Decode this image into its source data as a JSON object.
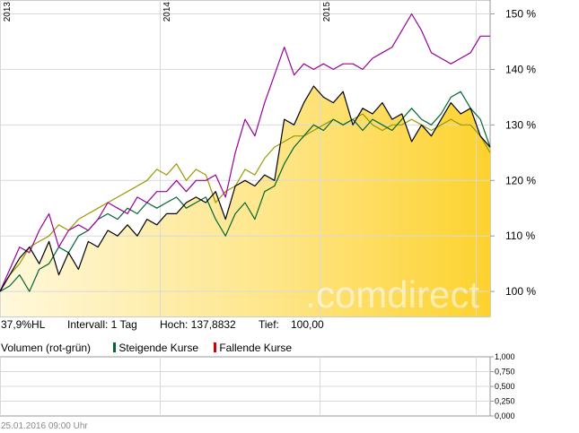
{
  "chart_data": {
    "type": "line",
    "x_labels": [
      "2013",
      "2014",
      "2015"
    ],
    "y_ticks": [
      "150 %",
      "140 %",
      "130 %",
      "120 %",
      "110 %",
      "100 %"
    ],
    "ylim": [
      95.5,
      152.5
    ],
    "grid": true,
    "watermark": ".comdirect",
    "colors": {
      "fill_top": "#fdd22e",
      "fill_light": "#fff8dc",
      "main": "#000000",
      "purple": "#990099",
      "olive": "#999900",
      "green": "#006633"
    },
    "series": [
      {
        "color": "black",
        "x": [
          0,
          0.02,
          0.04,
          0.06,
          0.08,
          0.1,
          0.12,
          0.14,
          0.16,
          0.18,
          0.2,
          0.22,
          0.24,
          0.26,
          0.28,
          0.3,
          0.32,
          0.34,
          0.36,
          0.38,
          0.4,
          0.42,
          0.44,
          0.46,
          0.48,
          0.5,
          0.52,
          0.54,
          0.56,
          0.58,
          0.6,
          0.62,
          0.64,
          0.66,
          0.68,
          0.7,
          0.72,
          0.74,
          0.76,
          0.78,
          0.8,
          0.82,
          0.84,
          0.86,
          0.88,
          0.9,
          0.92,
          0.94,
          0.96,
          0.98,
          1
        ],
        "y": [
          100,
          103,
          106,
          108,
          105,
          109,
          103,
          107,
          104,
          109,
          108,
          111,
          110,
          112,
          110,
          113,
          112,
          114,
          114,
          116,
          117,
          116,
          118,
          113,
          119,
          120,
          119,
          121,
          120,
          131,
          130,
          134,
          137,
          135,
          134,
          136,
          130,
          133,
          132,
          134,
          131,
          132,
          127,
          130,
          128,
          131,
          134,
          132,
          133,
          128,
          126
        ]
      },
      {
        "color": "purple",
        "x": [
          0,
          0.02,
          0.04,
          0.06,
          0.08,
          0.1,
          0.12,
          0.14,
          0.16,
          0.18,
          0.2,
          0.22,
          0.24,
          0.26,
          0.28,
          0.3,
          0.32,
          0.34,
          0.36,
          0.38,
          0.4,
          0.42,
          0.44,
          0.46,
          0.48,
          0.5,
          0.52,
          0.54,
          0.56,
          0.58,
          0.6,
          0.62,
          0.64,
          0.66,
          0.68,
          0.7,
          0.72,
          0.74,
          0.76,
          0.78,
          0.8,
          0.82,
          0.84,
          0.86,
          0.88,
          0.9,
          0.92,
          0.94,
          0.96,
          0.98,
          1
        ],
        "y": [
          100,
          104,
          108,
          107,
          111,
          114,
          108,
          111,
          112,
          111,
          113,
          116,
          115,
          114,
          117,
          116,
          118,
          118,
          120,
          118,
          120,
          120,
          121,
          117,
          125,
          131,
          128,
          134,
          139,
          144,
          139,
          141,
          140,
          141,
          140,
          141,
          141,
          140,
          142,
          143,
          144,
          147,
          150,
          147,
          143,
          142,
          141,
          142,
          143,
          146,
          146
        ]
      },
      {
        "color": "olive",
        "x": [
          0,
          0.02,
          0.04,
          0.06,
          0.08,
          0.1,
          0.12,
          0.14,
          0.16,
          0.18,
          0.2,
          0.22,
          0.24,
          0.26,
          0.28,
          0.3,
          0.32,
          0.34,
          0.36,
          0.38,
          0.4,
          0.42,
          0.44,
          0.46,
          0.48,
          0.5,
          0.52,
          0.54,
          0.56,
          0.58,
          0.6,
          0.62,
          0.64,
          0.66,
          0.68,
          0.7,
          0.72,
          0.74,
          0.76,
          0.78,
          0.8,
          0.82,
          0.84,
          0.86,
          0.88,
          0.9,
          0.92,
          0.94,
          0.96,
          0.98,
          1
        ],
        "y": [
          100,
          103,
          105,
          108,
          109,
          110,
          112,
          111,
          113,
          114,
          115,
          116,
          117,
          118,
          119,
          120,
          122,
          121,
          123,
          120,
          122,
          121,
          116,
          118,
          119,
          122,
          121,
          124,
          126,
          127,
          128,
          128,
          129,
          130,
          131,
          130,
          131,
          132,
          130,
          129,
          130,
          130,
          131,
          130,
          129,
          130,
          131,
          130,
          130,
          128,
          125
        ]
      },
      {
        "color": "green",
        "x": [
          0,
          0.02,
          0.04,
          0.06,
          0.08,
          0.1,
          0.12,
          0.14,
          0.16,
          0.18,
          0.2,
          0.22,
          0.24,
          0.26,
          0.28,
          0.3,
          0.32,
          0.34,
          0.36,
          0.38,
          0.4,
          0.42,
          0.44,
          0.46,
          0.48,
          0.5,
          0.52,
          0.54,
          0.56,
          0.58,
          0.6,
          0.62,
          0.64,
          0.66,
          0.68,
          0.7,
          0.72,
          0.74,
          0.76,
          0.78,
          0.8,
          0.82,
          0.84,
          0.86,
          0.88,
          0.9,
          0.92,
          0.94,
          0.96,
          0.98,
          1
        ],
        "y": [
          100,
          101,
          103,
          100,
          104,
          105,
          108,
          107,
          110,
          111,
          113,
          114,
          113,
          115,
          114,
          116,
          115,
          116,
          117,
          115,
          116,
          117,
          113,
          110,
          114,
          116,
          113,
          118,
          119,
          123,
          126,
          128,
          130,
          129,
          131,
          130,
          131,
          129,
          131,
          130,
          129,
          131,
          133,
          131,
          130,
          132,
          135,
          136,
          133,
          131,
          126
        ]
      }
    ]
  },
  "info_bar": {
    "change": "37,9%HL",
    "interval": "Intervall: 1 Tag",
    "high": "Hoch: 137,8832",
    "low": "Tief:",
    "low_value": "100,00"
  },
  "volume": {
    "title": "Volumen (rot-grün)",
    "rising_label": "Steigende Kurse",
    "falling_label": "Fallende Kurse",
    "rising_color": "#006633",
    "falling_color": "#cc0000",
    "y_ticks": [
      "1,000",
      "0,750",
      "0,500",
      "0,250",
      "0,000"
    ]
  },
  "timestamp": "25.01.2016 09:00 Uhr"
}
